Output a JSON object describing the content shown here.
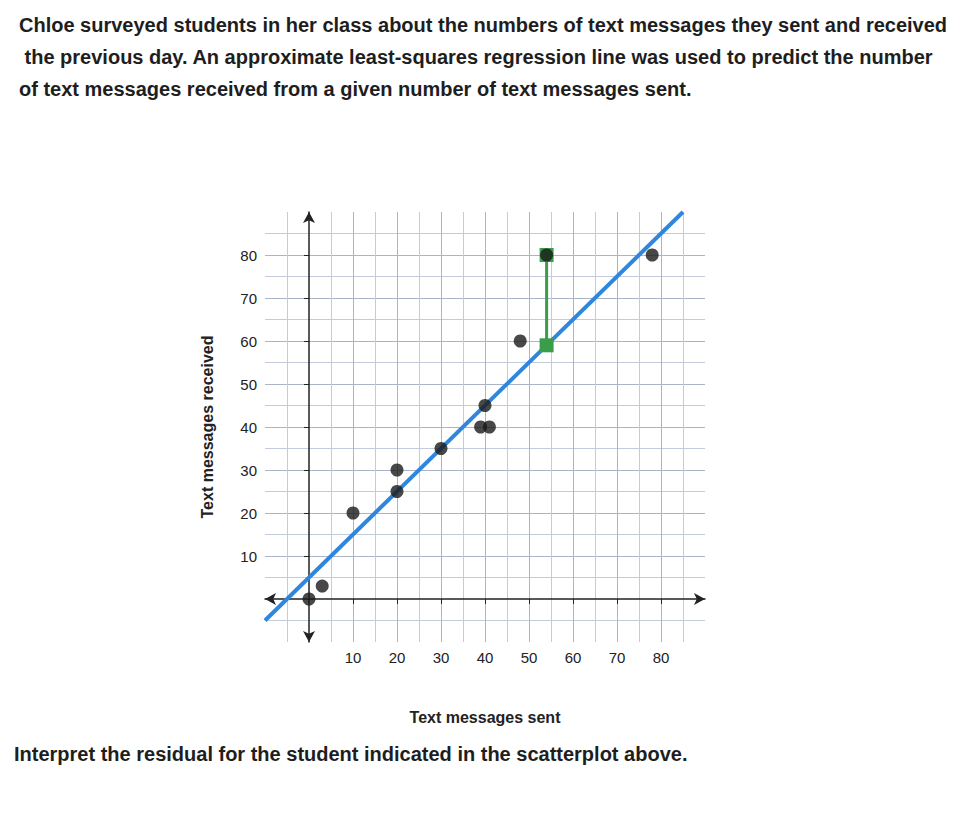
{
  "chart_data": {
    "type": "scatter",
    "title": "Chloe surveyed students in her class about the numbers of text messages they sent and received the previous day. An approximate least-squares regression line was used to predict the number of text messages received from a given number of text messages sent.",
    "annotations": [
      "Interpret the residual for the student indicated in the scatterplot above."
    ],
    "x_label": "Text messages sent",
    "y_label": "Text messages received",
    "x": [
      0,
      3,
      10,
      20,
      20,
      30,
      39,
      40,
      41,
      48,
      54,
      78
    ],
    "values": [
      0,
      3,
      20,
      25,
      30,
      35,
      40,
      45,
      40,
      60,
      80,
      80
    ],
    "color": "#1a1a1a",
    "marker": "circle",
    "xlim": [
      -10,
      90
    ],
    "ylim": [
      -10,
      90
    ],
    "xticks": [
      10,
      20,
      30,
      40,
      50,
      60,
      70,
      80
    ],
    "yticks": [
      10,
      20,
      30,
      40,
      50,
      60,
      70,
      80
    ],
    "grid": true,
    "regression_line": {
      "x": [
        -10,
        85
      ],
      "values": [
        -5,
        90
      ],
      "color": "#2e86de"
    },
    "residual": {
      "x": 54,
      "from": 59,
      "to": 80,
      "color": "#3a9d4a"
    }
  }
}
